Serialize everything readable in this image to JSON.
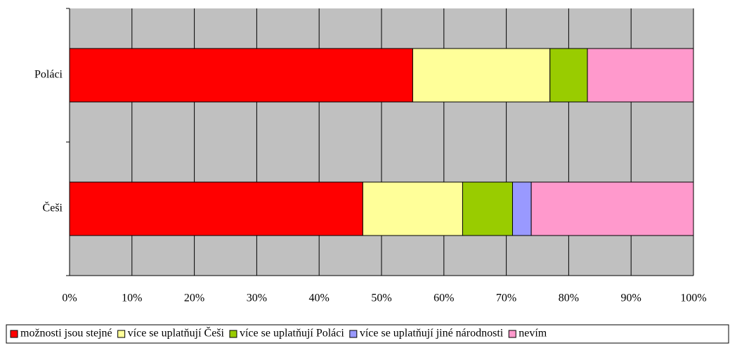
{
  "chart_data": {
    "type": "stacked_barh",
    "categories": [
      "Poláci",
      "Češi"
    ],
    "series": [
      {
        "name": "možnosti jsou stejné",
        "color": "#ff0000",
        "values": [
          55,
          47
        ]
      },
      {
        "name": "více se uplatňují Češi",
        "color": "#ffff99",
        "values": [
          22,
          16
        ]
      },
      {
        "name": "více se uplatňují Poláci",
        "color": "#99cc00",
        "values": [
          6,
          8
        ]
      },
      {
        "name": "více se uplatňují jiné národnosti",
        "color": "#9999ff",
        "values": [
          0,
          3
        ]
      },
      {
        "name": "nevím",
        "color": "#ff99cc",
        "values": [
          17,
          26
        ]
      }
    ],
    "xlim": [
      0,
      100
    ],
    "xticks": [
      {
        "value": 0,
        "label": "0%"
      },
      {
        "value": 10,
        "label": "10%"
      },
      {
        "value": 20,
        "label": "20%"
      },
      {
        "value": 30,
        "label": "30%"
      },
      {
        "value": 40,
        "label": "40%"
      },
      {
        "value": 50,
        "label": "50%"
      },
      {
        "value": 60,
        "label": "60%"
      },
      {
        "value": 70,
        "label": "70%"
      },
      {
        "value": 80,
        "label": "80%"
      },
      {
        "value": 90,
        "label": "90%"
      },
      {
        "value": 100,
        "label": "100%"
      }
    ],
    "grid": true,
    "legend": "bottom"
  }
}
